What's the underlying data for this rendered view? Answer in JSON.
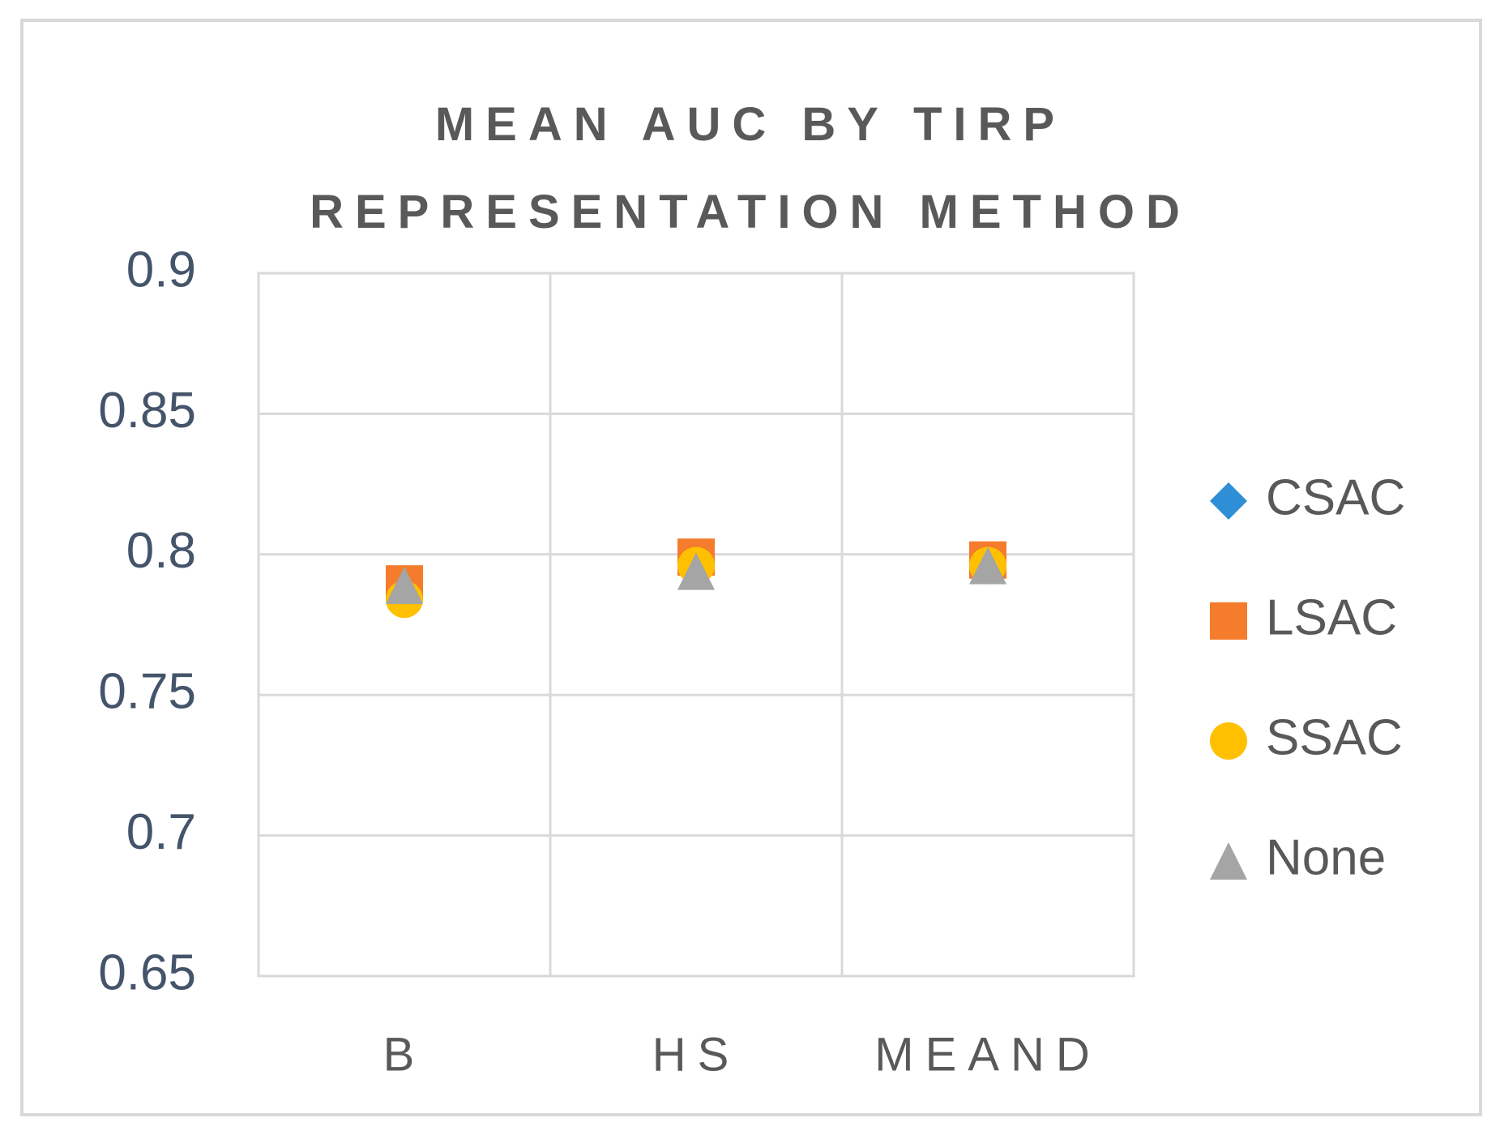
{
  "chart_data": {
    "type": "scatter",
    "title": "MEAN AUC BY TIRP REPRESENTATION METHOD",
    "categories": [
      "B",
      "HS",
      "MEAND"
    ],
    "series": [
      {
        "name": "CSAC",
        "color": "#2e8fd6",
        "marker": "diamond",
        "values": [
          0.787,
          0.797,
          0.797
        ]
      },
      {
        "name": "LSAC",
        "color": "#f47c2c",
        "marker": "square",
        "values": [
          0.7895,
          0.799,
          0.798
        ]
      },
      {
        "name": "SSAC",
        "color": "#ffc000",
        "marker": "circle",
        "values": [
          0.784,
          0.796,
          0.796
        ]
      },
      {
        "name": "None",
        "color": "#a5a5a5",
        "marker": "triangle",
        "values": [
          0.789,
          0.794,
          0.796
        ]
      }
    ],
    "ylim": [
      0.65,
      0.9
    ],
    "yticks": [
      0.65,
      0.7,
      0.75,
      0.8,
      0.85,
      0.9
    ],
    "grid": true,
    "legend": "right"
  }
}
